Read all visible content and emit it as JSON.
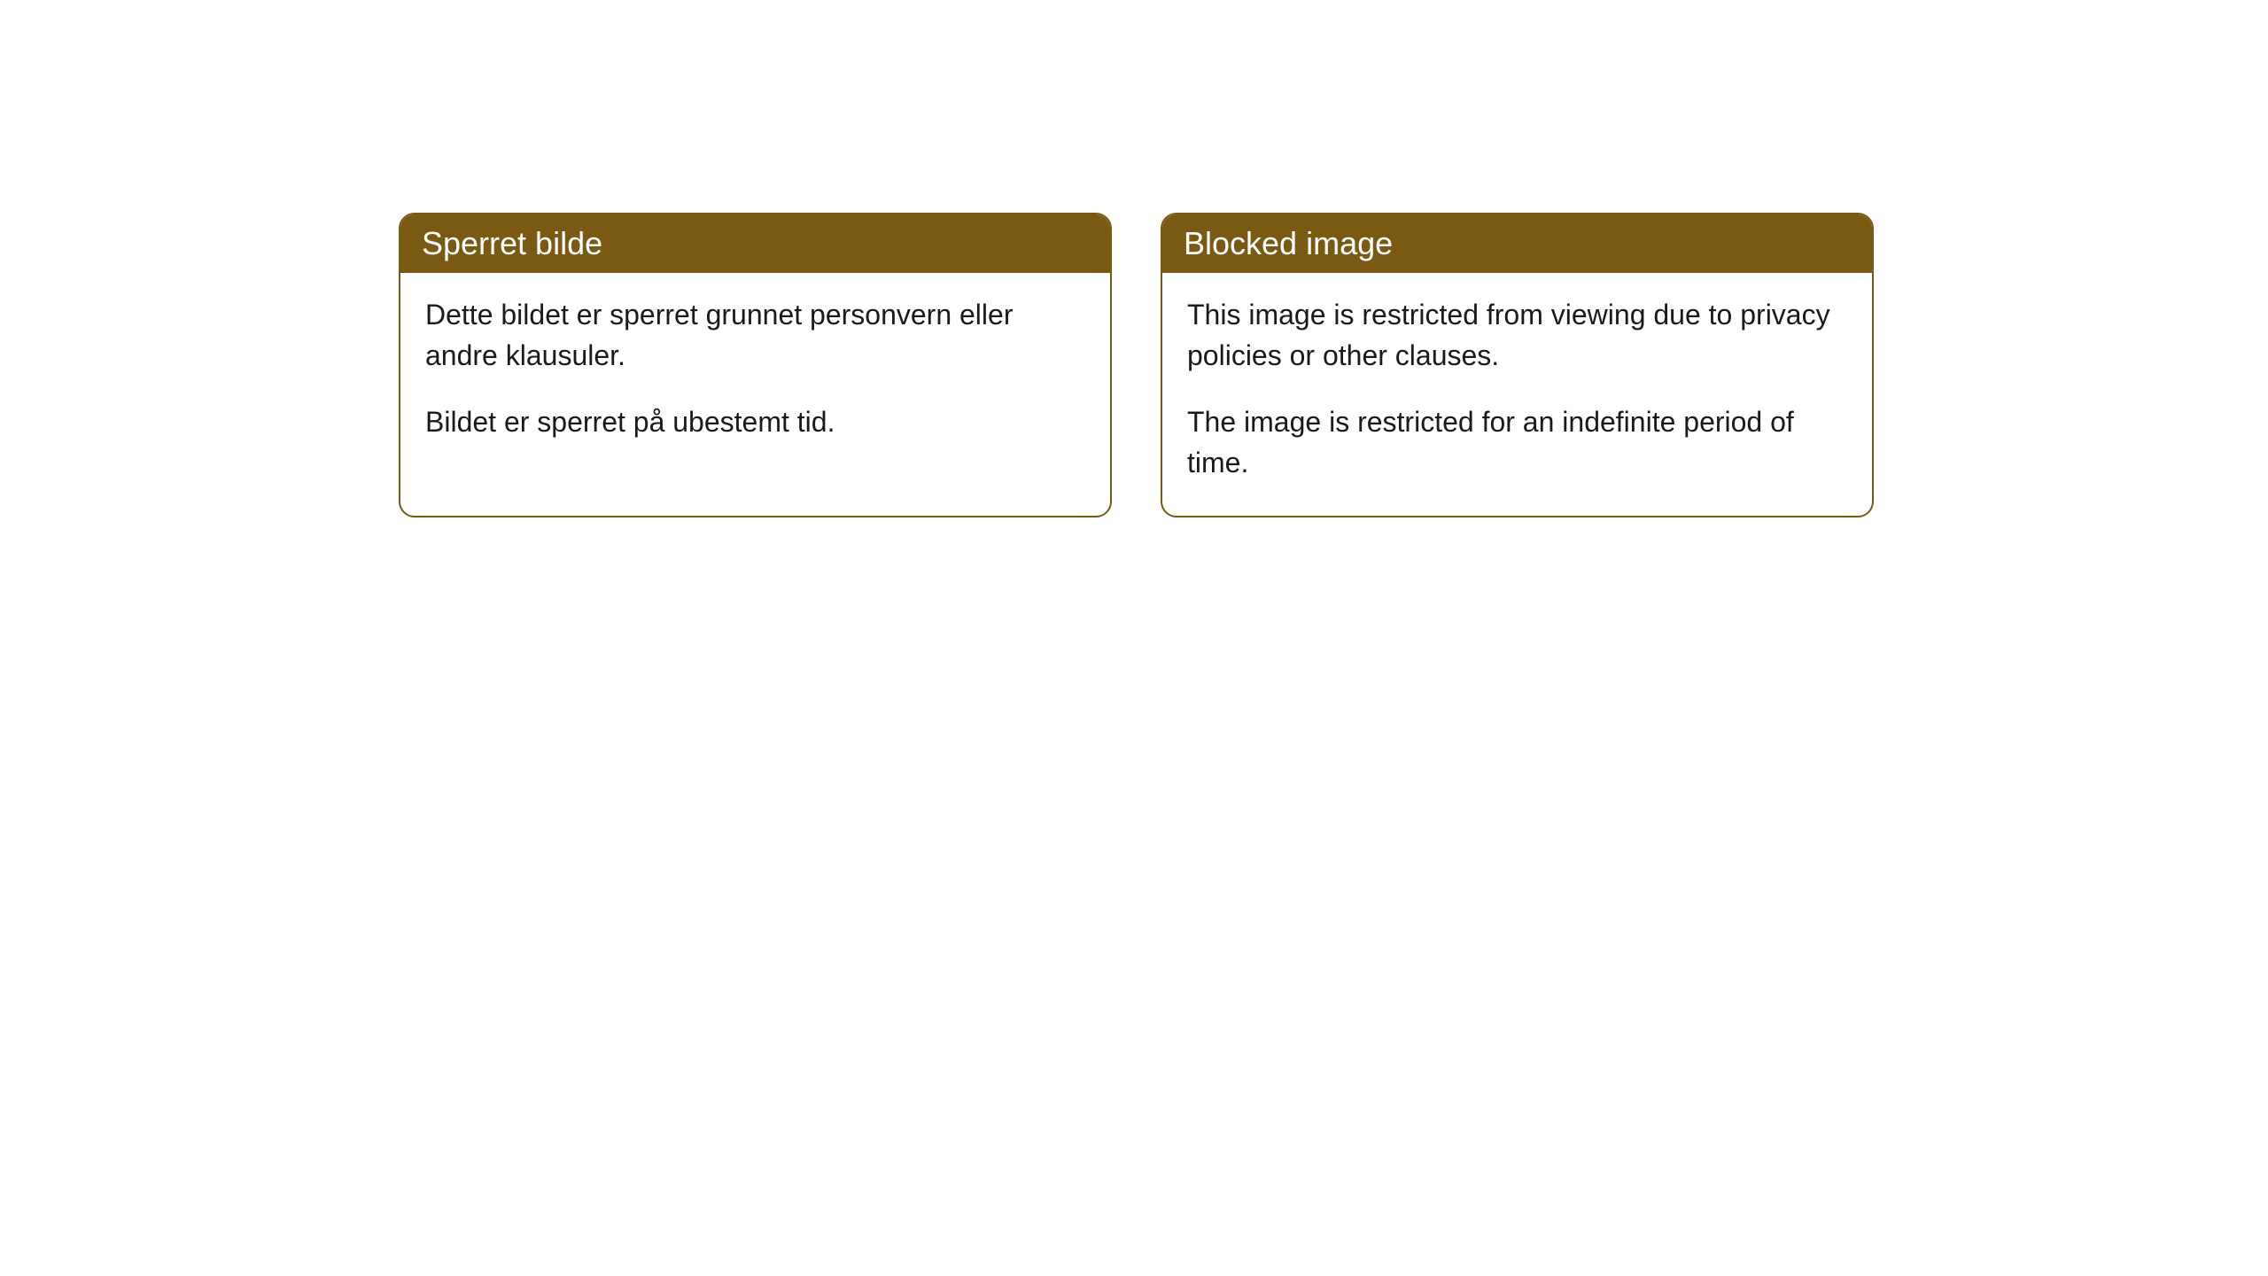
{
  "page": {
    "background_color": "#ffffff"
  },
  "cards": [
    {
      "title": "Sperret bilde",
      "body_p1": "Dette bildet er sperret grunnet personvern eller andre klausuler.",
      "body_p2": "Bildet er sperret på ubestemt tid."
    },
    {
      "title": "Blocked image",
      "body_p1": "This image is restricted from viewing due to privacy policies or other clauses.",
      "body_p2": "The image is restricted for an indefinite period of time."
    }
  ],
  "style": {
    "card_border_color": "#7a5a12",
    "header_bg_color": "#7a5a12",
    "header_text_color": "#ffffff",
    "body_text_color": "#1a1a1a",
    "header_fontsize": 36,
    "body_fontsize": 32,
    "border_radius": 18
  }
}
